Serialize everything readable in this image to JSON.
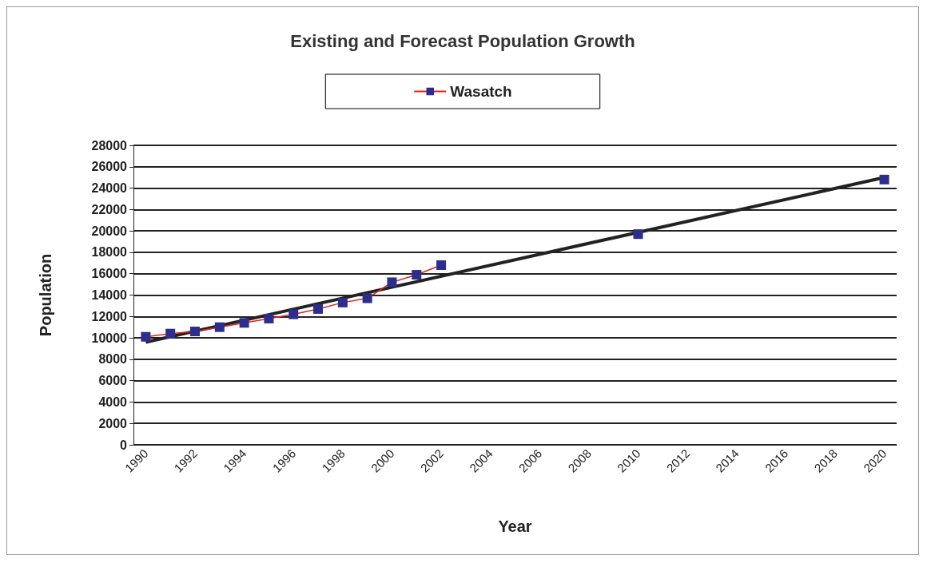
{
  "chart_data": {
    "type": "line",
    "title": "Existing and Forecast Population Growth",
    "xlabel": "Year",
    "ylabel": "Population",
    "categories": [
      "1990",
      null,
      "1992",
      null,
      "1994",
      null,
      "1996",
      null,
      "1998",
      null,
      "2000",
      null,
      "2002",
      null,
      "2004",
      null,
      "2006",
      null,
      "2008",
      null,
      "2010",
      null,
      "2012",
      null,
      "2014",
      null,
      "2016",
      null,
      "2018",
      null,
      "2020"
    ],
    "series": [
      {
        "name": "Wasatch",
        "color": "#2b2e8c",
        "marker": "square",
        "values": [
          10100,
          10400,
          10600,
          11000,
          11400,
          11800,
          12200,
          12700,
          13300,
          13700,
          15200,
          15900,
          16800,
          null,
          null,
          null,
          null,
          null,
          null,
          null,
          19700,
          null,
          null,
          null,
          null,
          null,
          null,
          null,
          null,
          null,
          24800
        ]
      },
      {
        "type": "line",
        "color": "#222222",
        "marker": "none",
        "values": [
          9600,
          null,
          null,
          null,
          null,
          null,
          null,
          null,
          null,
          null,
          null,
          null,
          null,
          null,
          null,
          null,
          null,
          null,
          null,
          null,
          null,
          null,
          null,
          null,
          null,
          null,
          null,
          null,
          null,
          null,
          25000
        ]
      }
    ],
    "ylim": [
      0,
      28000
    ],
    "yticks": [
      0,
      2000,
      4000,
      6000,
      8000,
      10000,
      12000,
      14000,
      16000,
      18000,
      20000,
      22000,
      24000,
      26000,
      28000
    ],
    "grid": "y",
    "legend": "top"
  }
}
